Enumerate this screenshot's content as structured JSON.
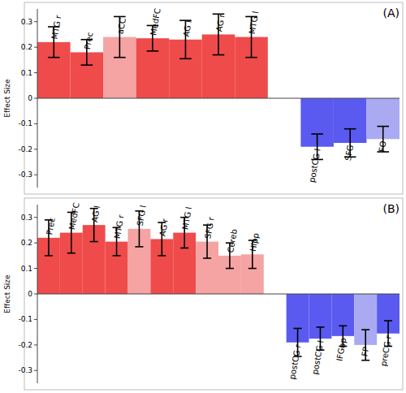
{
  "chart_data": [
    {
      "type": "bar",
      "title": "(A)",
      "y_label": "Effect Size",
      "categories": [
        "MTG r",
        "Prec",
        "aCC",
        "MedFC",
        "AG l",
        "AG r",
        "MTG l",
        "postCG l",
        "SFG",
        "FO"
      ],
      "values": [
        0.22,
        0.18,
        0.24,
        0.235,
        0.23,
        0.25,
        0.24,
        -0.19,
        -0.175,
        -0.16
      ],
      "errors": [
        0.06,
        0.05,
        0.08,
        0.05,
        0.075,
        0.08,
        0.08,
        0.05,
        0.055,
        0.05
      ],
      "colors": [
        "#ef4b4b",
        "#ef4b4b",
        "#f5a3a3",
        "#ef4b4b",
        "#ef4b4b",
        "#ef4b4b",
        "#ef4b4b",
        "#5a5af0",
        "#5a5af0",
        "#aaaaf2"
      ],
      "ylim": [
        -0.35,
        0.35
      ],
      "yticks": [
        -0.3,
        -0.2,
        -0.1,
        0,
        0.1,
        0.2,
        0.3
      ],
      "grid": false
    },
    {
      "type": "bar",
      "title": "(B)",
      "y_label": "Effect Size",
      "categories": [
        "Prec",
        "MedFC",
        "AG l",
        "MTG r",
        "SFG l",
        "AG r",
        "MTG l",
        "SFG r",
        "Cereb",
        "Hipp",
        "postCG r",
        "postCG l",
        "IFGop",
        "FP",
        "preCG r"
      ],
      "values": [
        0.22,
        0.24,
        0.27,
        0.205,
        0.255,
        0.215,
        0.24,
        0.205,
        0.15,
        0.155,
        -0.19,
        -0.175,
        -0.165,
        -0.2,
        -0.155
      ],
      "errors": [
        0.07,
        0.08,
        0.065,
        0.055,
        0.07,
        0.065,
        0.06,
        0.065,
        0.05,
        0.055,
        0.055,
        0.045,
        0.04,
        0.06,
        0.05
      ],
      "colors": [
        "#ef4b4b",
        "#ef4b4b",
        "#ef4b4b",
        "#ef4b4b",
        "#f5a3a3",
        "#ef4b4b",
        "#ef4b4b",
        "#f5a3a3",
        "#f5a3a3",
        "#f5a3a3",
        "#5a5af0",
        "#5a5af0",
        "#5a5af0",
        "#aaaaf2",
        "#5a5af0"
      ],
      "ylim": [
        -0.35,
        0.35
      ],
      "yticks": [
        -0.3,
        -0.2,
        -0.1,
        0,
        0.1,
        0.2,
        0.3
      ],
      "grid": false
    }
  ]
}
